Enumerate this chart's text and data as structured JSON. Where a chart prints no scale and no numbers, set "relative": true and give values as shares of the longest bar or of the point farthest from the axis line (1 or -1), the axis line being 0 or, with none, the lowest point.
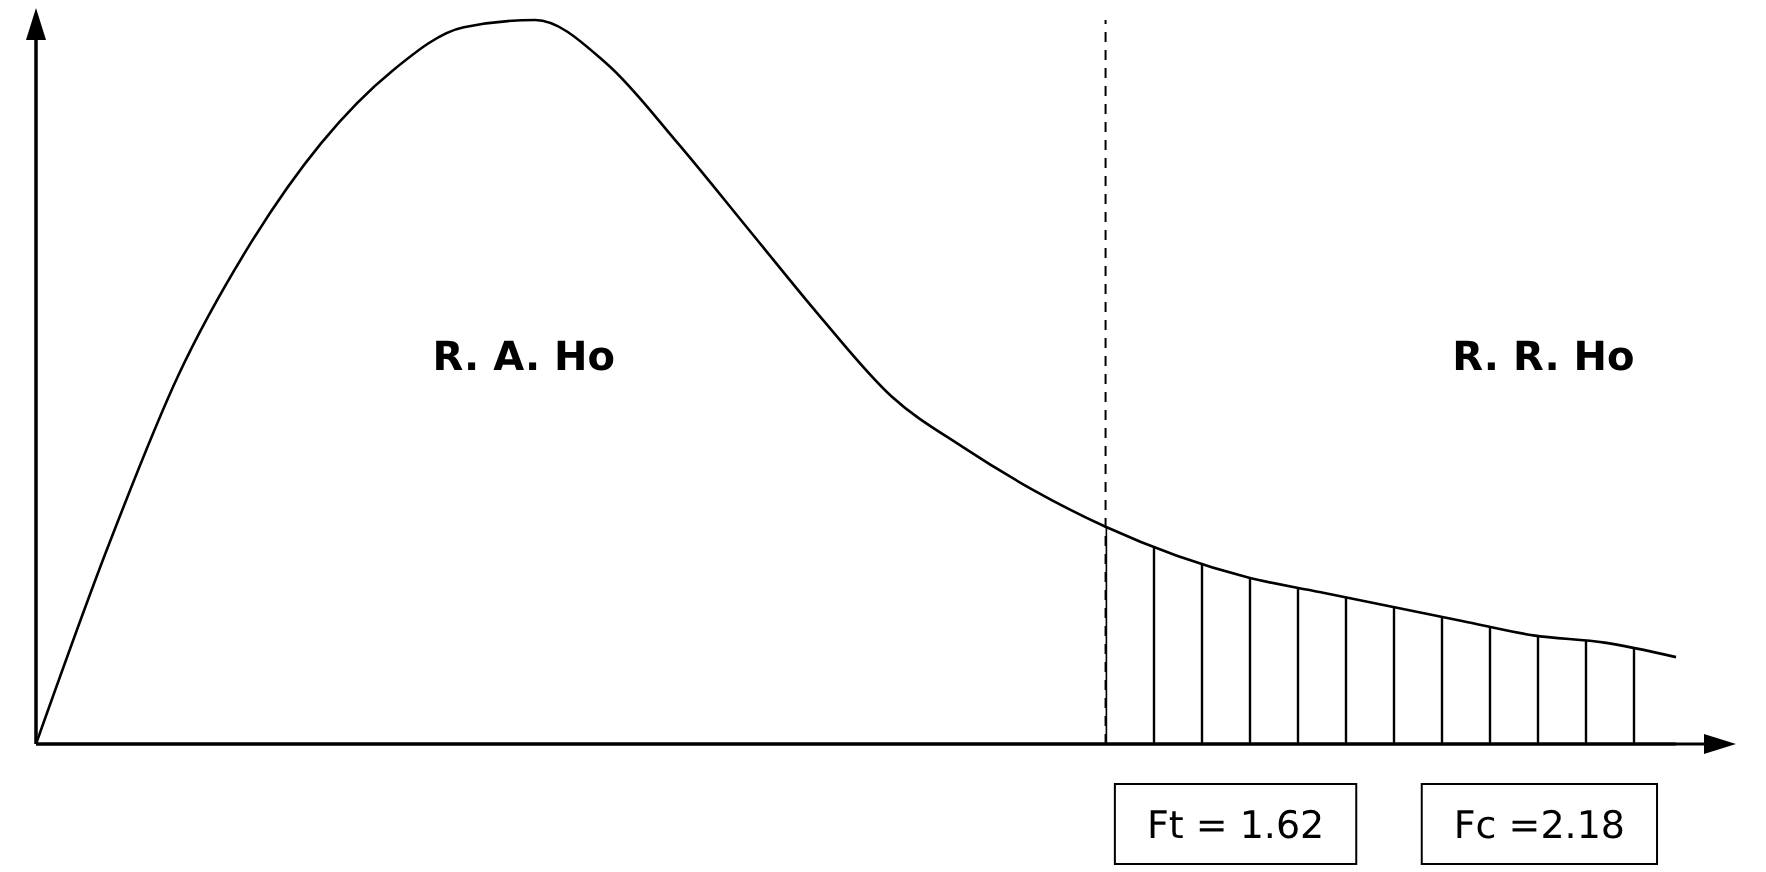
{
  "chart_data": {
    "type": "line",
    "relative": true,
    "line_style": "solid",
    "categories": [
      null,
      null,
      null,
      null,
      null,
      null,
      null,
      null,
      null,
      null,
      null,
      null,
      null,
      null,
      null,
      null,
      null,
      null,
      null,
      null,
      null,
      null,
      null,
      null
    ],
    "series": [
      {
        "color": "#000000",
        "values": [
          0,
          0.27,
          0.51,
          0.69,
          0.83,
          0.93,
          0.99,
          1,
          0.94,
          0.83,
          0.71,
          0.59,
          0.48,
          0.41,
          0.35,
          0.3,
          0.26,
          0.23,
          0.21,
          0.19,
          0.17,
          0.15,
          0.14,
          0.12
        ]
      },
      {
        "type": "area",
        "color": "#000000",
        "values": [
          null,
          null,
          null,
          null,
          null,
          null,
          null,
          null,
          null,
          null,
          null,
          null,
          null,
          null,
          null,
          0.3,
          0.26,
          0.23,
          0.21,
          0.19,
          0.17,
          0.15,
          0.14,
          0.12
        ]
      }
    ],
    "annotations": [
      "R. A. Ho",
      "R. R. Ho",
      "Ft = 1.62",
      "Fc =2.18"
    ]
  }
}
